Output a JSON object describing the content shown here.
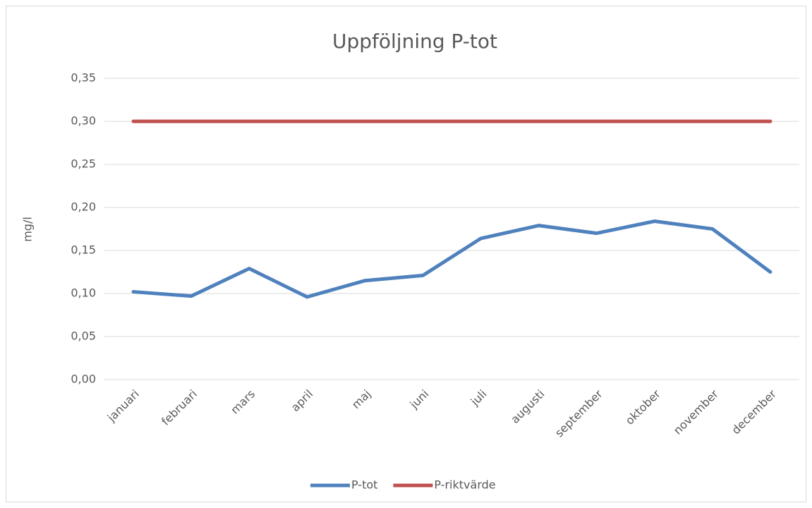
{
  "chart_data": {
    "type": "line",
    "title": "Uppföljning P-tot",
    "y_label": "mg/l",
    "categories": [
      "januari",
      "februari",
      "mars",
      "april",
      "maj",
      "juni",
      "juli",
      "augusti",
      "september",
      "oktober",
      "november",
      "december"
    ],
    "series": [
      {
        "name": "P-tot",
        "color": "#4f81bd",
        "values": [
          0.102,
          0.097,
          0.129,
          0.096,
          0.115,
          0.121,
          0.164,
          0.179,
          0.17,
          0.184,
          0.175,
          0.125
        ]
      },
      {
        "name": "P-riktvärde",
        "color": "#c0504d",
        "values": [
          0.3,
          0.3,
          0.3,
          0.3,
          0.3,
          0.3,
          0.3,
          0.3,
          0.3,
          0.3,
          0.3,
          0.3
        ]
      }
    ],
    "ylim": [
      0,
      0.35
    ],
    "yticks": [
      {
        "value": 0,
        "label": "0,00"
      },
      {
        "value": 0.05,
        "label": "0,05"
      },
      {
        "value": 0.1,
        "label": "0,10"
      },
      {
        "value": 0.15,
        "label": "0,15"
      },
      {
        "value": 0.2,
        "label": "0,20"
      },
      {
        "value": 0.25,
        "label": "0,25"
      },
      {
        "value": 0.3,
        "label": "0,30"
      },
      {
        "value": 0.35,
        "label": "0,35"
      }
    ],
    "grid": true,
    "legend": "bottom"
  }
}
